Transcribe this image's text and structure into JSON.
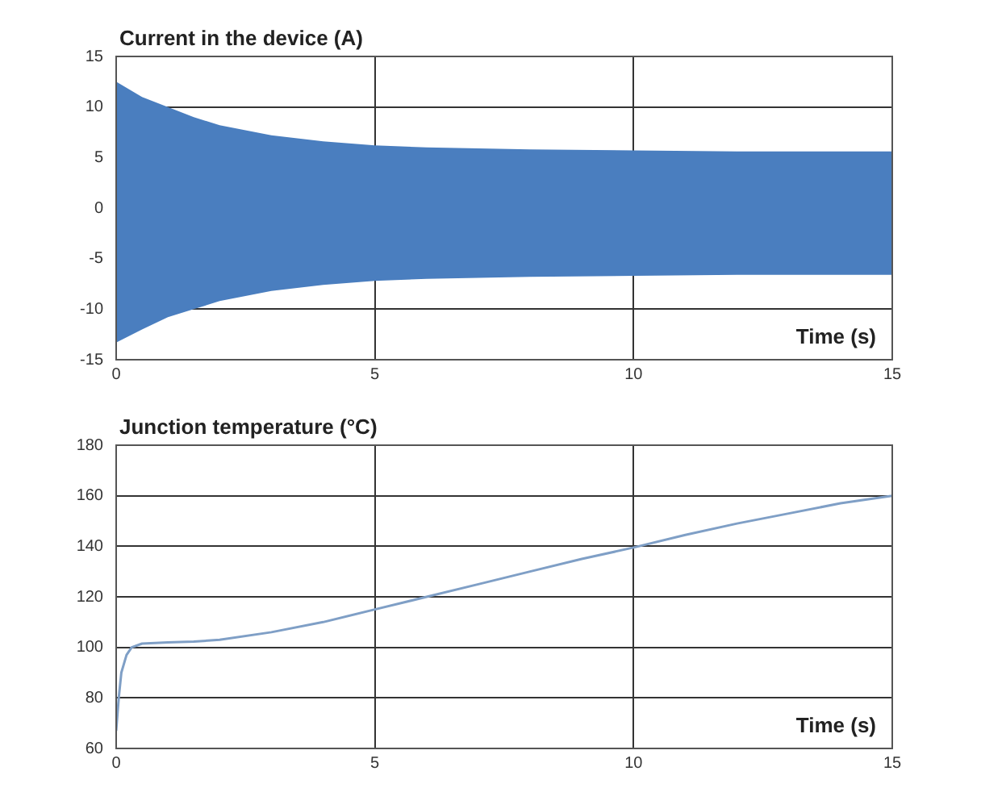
{
  "chart_data": [
    {
      "type": "area",
      "title": "Current in the device (A)",
      "xlabel": "Time (s)",
      "xlim": [
        0,
        15
      ],
      "xticks": [
        0,
        5,
        10,
        15
      ],
      "ylim": [
        -15,
        15
      ],
      "yticks": [
        -15,
        -10,
        -5,
        0,
        5,
        10,
        15
      ],
      "grid": true,
      "series": [
        {
          "color": "#4a7ebf",
          "x": [
            0,
            0.5,
            1,
            1.5,
            2,
            3,
            4,
            5,
            6,
            7,
            8,
            10,
            12,
            15
          ],
          "values": [
            12.5,
            11,
            10,
            9,
            8.2,
            7.2,
            6.6,
            6.2,
            6,
            5.9,
            5.8,
            5.7,
            5.6,
            5.6
          ]
        },
        {
          "color": "#4a7ebf",
          "x": [
            0,
            0.5,
            1,
            1.5,
            2,
            3,
            4,
            5,
            6,
            7,
            8,
            10,
            12,
            15
          ],
          "values": [
            -13.3,
            -12,
            -10.8,
            -10,
            -9.2,
            -8.2,
            -7.6,
            -7.2,
            -7,
            -6.9,
            -6.8,
            -6.7,
            -6.6,
            -6.6
          ]
        }
      ]
    },
    {
      "type": "line",
      "title": "Junction temperature (°C)",
      "xlabel": "Time (s)",
      "xlim": [
        0,
        15
      ],
      "xticks": [
        0,
        5,
        10,
        15
      ],
      "ylim": [
        60,
        180
      ],
      "yticks": [
        60,
        80,
        100,
        120,
        140,
        160,
        180
      ],
      "grid": true,
      "series": [
        {
          "color": "#7f9fc6",
          "x": [
            0,
            0.05,
            0.1,
            0.2,
            0.3,
            0.5,
            1,
            1.5,
            2,
            3,
            4,
            5,
            6,
            7,
            8,
            9,
            10,
            11,
            12,
            13,
            14,
            15
          ],
          "values": [
            67,
            80,
            90,
            97,
            100,
            101.5,
            102,
            102.3,
            103,
            106,
            110,
            115,
            120,
            125,
            130,
            135,
            139.5,
            144.5,
            149,
            153,
            157,
            160
          ]
        }
      ]
    }
  ]
}
